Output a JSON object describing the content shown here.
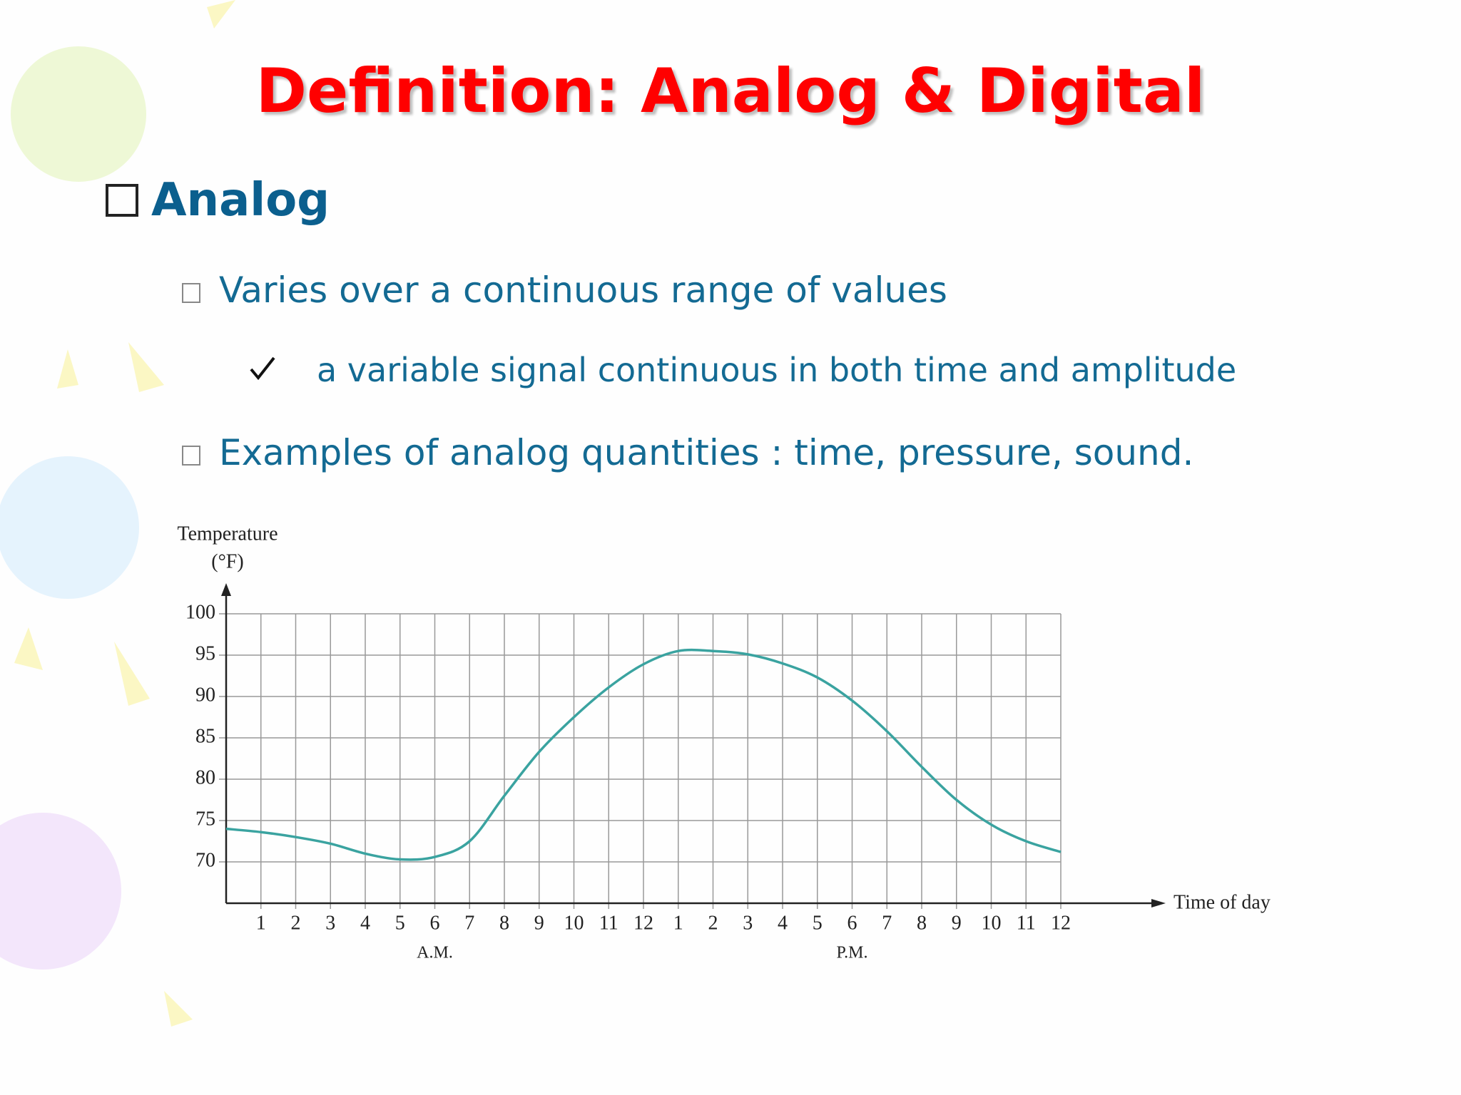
{
  "slide": {
    "title": "Definition:  Analog & Digital",
    "heading": "Analog",
    "bullets": [
      "Varies over a continuous range of values",
      "Examples of analog quantities : time, pressure, sound."
    ],
    "check_item": "a variable signal continuous in both time and amplitude"
  },
  "chart_data": {
    "type": "line",
    "ylabel": [
      "Temperature",
      "(°F)"
    ],
    "xlabel": "Time of day",
    "annotations": [
      "A.M.",
      "P.M."
    ],
    "x": [
      0,
      1,
      2,
      3,
      4,
      5,
      6,
      7,
      8,
      9,
      10,
      11,
      12,
      13,
      14,
      15,
      16,
      17,
      18,
      19,
      20,
      21,
      22,
      23,
      24
    ],
    "values": [
      74,
      73.6,
      73,
      72.2,
      71,
      70.3,
      70.6,
      72.5,
      78,
      83.3,
      87.5,
      91.1,
      93.9,
      95.5,
      95.5,
      95.1,
      94,
      92.3,
      89.5,
      85.8,
      81.5,
      77.5,
      74.5,
      72.5,
      71.2
    ],
    "color": "#3aa3a0",
    "xlim": [
      0,
      24
    ],
    "xticks": [
      1,
      2,
      3,
      4,
      5,
      6,
      7,
      8,
      9,
      10,
      11,
      12,
      {
        "value": 13,
        "label": "1"
      },
      {
        "value": 14,
        "label": "2"
      },
      {
        "value": 15,
        "label": "3"
      },
      {
        "value": 16,
        "label": "4"
      },
      {
        "value": 17,
        "label": "5"
      },
      {
        "value": 18,
        "label": "6"
      },
      {
        "value": 19,
        "label": "7"
      },
      {
        "value": 20,
        "label": "8"
      },
      {
        "value": 21,
        "label": "9"
      },
      {
        "value": 22,
        "label": "10"
      },
      {
        "value": 23,
        "label": "11"
      },
      {
        "value": 24,
        "label": "12"
      }
    ],
    "ylim": [
      65,
      100
    ],
    "yticks": [
      70,
      75,
      80,
      85,
      90,
      95,
      100
    ],
    "grid": true
  }
}
